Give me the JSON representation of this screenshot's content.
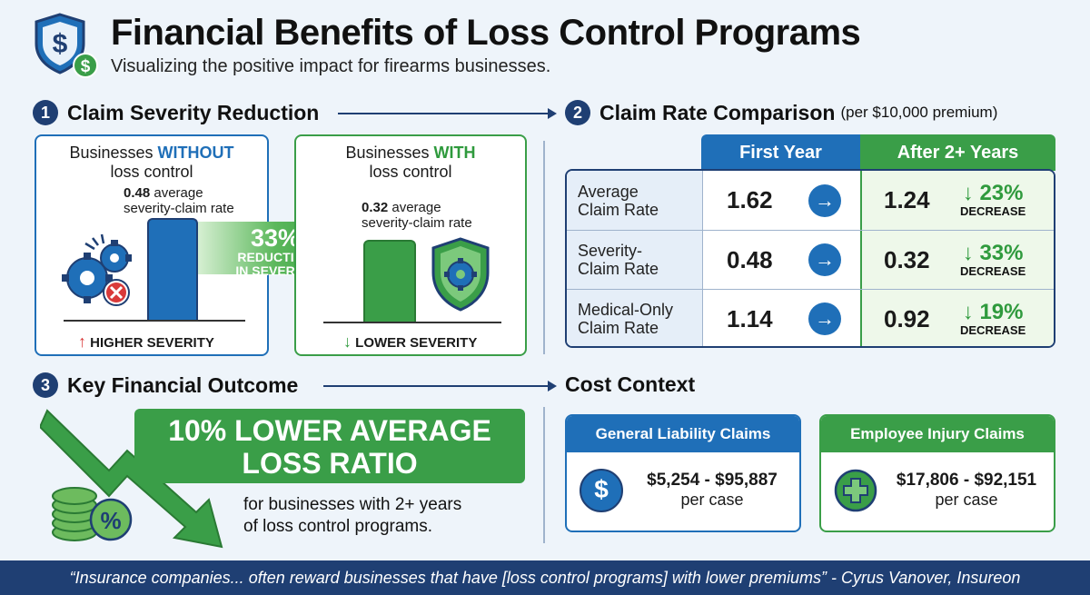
{
  "header": {
    "title": "Financial Benefits of Loss Control Programs",
    "subtitle": "Visualizing the positive impact for firearms businesses."
  },
  "section1": {
    "number": "1",
    "title": "Claim Severity Reduction",
    "without": {
      "heading_pre": "Businesses ",
      "heading_em": "WITHOUT",
      "heading_post": "loss control",
      "value": "0.48",
      "value_text": " average",
      "value_text2": "severity-claim rate",
      "footer": "HIGHER SEVERITY"
    },
    "arrow": {
      "pct": "33%",
      "line1": "REDUCTION",
      "line2": "IN SEVERITY"
    },
    "with": {
      "heading_pre": "Businesses ",
      "heading_em": "WITH",
      "heading_post": "loss control",
      "value": "0.32",
      "value_text": " average",
      "value_text2": "severity-claim rate",
      "footer": "LOWER SEVERITY"
    }
  },
  "section2": {
    "number": "2",
    "title": "Claim Rate Comparison",
    "title_note": "(per $10,000 premium)",
    "col_first": "First Year",
    "col_after": "After 2+ Years",
    "rows": [
      {
        "label1": "Average",
        "label2": "Claim Rate",
        "first": "1.62",
        "after": "1.24",
        "pct": "23%",
        "dec": "DECREASE"
      },
      {
        "label1": "Severity-",
        "label2": "Claim Rate",
        "first": "0.48",
        "after": "0.32",
        "pct": "33%",
        "dec": "DECREASE"
      },
      {
        "label1": "Medical-Only",
        "label2": "Claim Rate",
        "first": "1.14",
        "after": "0.92",
        "pct": "19%",
        "dec": "DECREASE"
      }
    ]
  },
  "section3": {
    "number": "3",
    "title": "Key Financial Outcome",
    "banner1": "10% LOWER AVERAGE",
    "banner2": "LOSS RATIO",
    "desc1": "for businesses with 2+ years",
    "desc2": "of loss control programs."
  },
  "cost": {
    "title": "Cost Context",
    "general": {
      "title": "General Liability Claims",
      "range": "$5,254 - $95,887",
      "unit": "per case"
    },
    "employee": {
      "title": "Employee Injury Claims",
      "range": "$17,806 - $92,151",
      "unit": "per case"
    }
  },
  "quote": "“Insurance companies... often reward businesses that have [loss control programs] with lower premiums” - Cyrus Vanover, Insureon",
  "colors": {
    "navy": "#1f3f73",
    "blue": "#1f6fb8",
    "green": "#3a9e48"
  }
}
